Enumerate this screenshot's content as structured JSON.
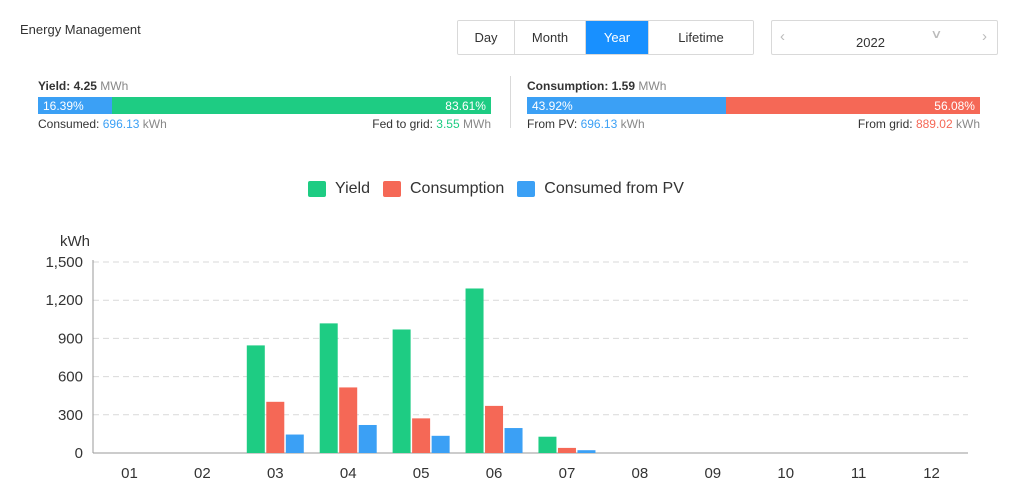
{
  "title": "Energy Management",
  "tabs": [
    {
      "label": "Day",
      "active": false
    },
    {
      "label": "Month",
      "active": false
    },
    {
      "label": "Year",
      "active": true
    },
    {
      "label": "Lifetime",
      "active": false
    }
  ],
  "year_picker": {
    "value": "2022",
    "prev_icon": "chevron-left-icon",
    "next_icon": "chevron-right-icon",
    "dropdown_icon": "chevron-down-icon"
  },
  "yield_panel": {
    "label": "Yield:",
    "value": "4.25",
    "unit": "MWh",
    "bar_left_pct": "16.39%",
    "bar_right_pct": "83.61%",
    "bar_left_fraction": 0.1639,
    "consumed_label": "Consumed:",
    "consumed_value": "696.13",
    "consumed_unit": "kWh",
    "fed_label": "Fed to grid:",
    "fed_value": "3.55",
    "fed_unit": "MWh"
  },
  "consumption_panel": {
    "label": "Consumption:",
    "value": "1.59",
    "unit": "MWh",
    "bar_left_pct": "43.92%",
    "bar_right_pct": "56.08%",
    "bar_left_fraction": 0.4392,
    "pv_label": "From PV:",
    "pv_value": "696.13",
    "pv_unit": "kWh",
    "grid_label": "From grid:",
    "grid_value": "889.02",
    "grid_unit": "kWh"
  },
  "colors": {
    "yield": "#1ecc83",
    "consumption": "#f56856",
    "consumed_pv": "#3ba0f5",
    "accent": "#1890ff"
  },
  "chart_data": {
    "type": "bar",
    "ylabel": "kWh",
    "ylim": [
      0,
      1500
    ],
    "yticks": [
      "0",
      "300",
      "600",
      "900",
      "1,200",
      "1,500"
    ],
    "ytick_values": [
      0,
      300,
      600,
      900,
      1200,
      1500
    ],
    "grid": true,
    "legend_position": "top-center",
    "categories": [
      "01",
      "02",
      "03",
      "04",
      "05",
      "06",
      "07",
      "08",
      "09",
      "10",
      "11",
      "12"
    ],
    "series": [
      {
        "name": "Yield",
        "color": "#1ecc83",
        "values": [
          0,
          0,
          845,
          1018,
          970,
          1292,
          128,
          0,
          0,
          0,
          0,
          0
        ]
      },
      {
        "name": "Consumption",
        "color": "#f56856",
        "values": [
          0,
          0,
          402,
          515,
          272,
          370,
          40,
          0,
          0,
          0,
          0,
          0
        ]
      },
      {
        "name": "Consumed from PV",
        "color": "#3ba0f5",
        "values": [
          0,
          0,
          145,
          220,
          135,
          196,
          22,
          0,
          0,
          0,
          0,
          0
        ]
      }
    ]
  }
}
